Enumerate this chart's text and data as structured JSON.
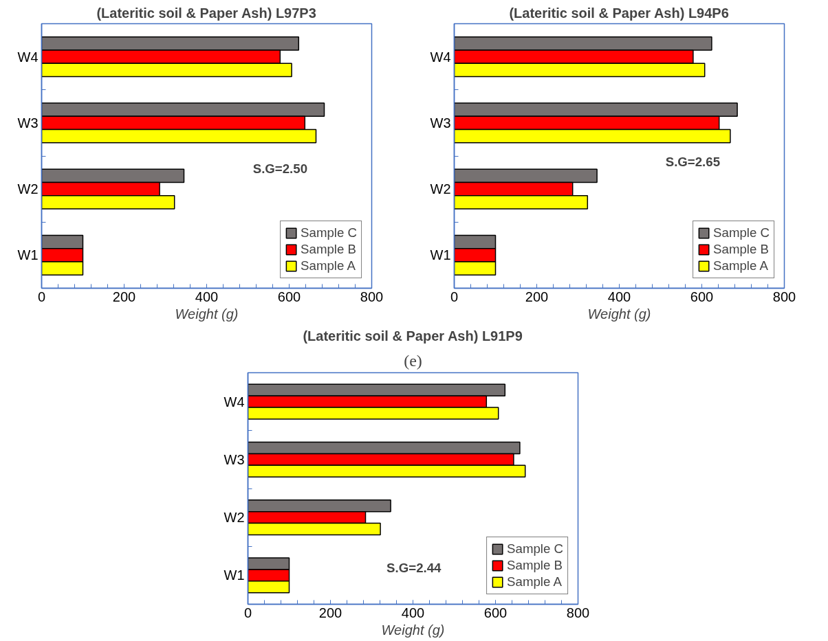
{
  "chart_data": [
    {
      "type": "bar",
      "orientation": "horizontal",
      "title": "(Lateritic soil & Paper Ash) L97P3",
      "xlabel": "Weight (g)",
      "categories": [
        "W4",
        "W3",
        "W2",
        "W1"
      ],
      "series": [
        {
          "name": "Sample C",
          "color": "#767171",
          "values": [
            623,
            685,
            345,
            100
          ]
        },
        {
          "name": "Sample B",
          "color": "#ff0000",
          "values": [
            578,
            638,
            286,
            100
          ]
        },
        {
          "name": "Sample A",
          "color": "#ffff00",
          "values": [
            606,
            665,
            322,
            100
          ]
        }
      ],
      "xlim": [
        0,
        800
      ],
      "xticks": [
        0,
        200,
        400,
        600,
        800
      ],
      "legend": "bottom right",
      "annotations": [
        "S.G=2.50"
      ]
    },
    {
      "type": "bar",
      "orientation": "horizontal",
      "title": "(Lateritic soil & Paper Ash) L94P6",
      "xlabel": "Weight (g)",
      "categories": [
        "W4",
        "W3",
        "W2",
        "W1"
      ],
      "series": [
        {
          "name": "Sample C",
          "color": "#767171",
          "values": [
            624,
            686,
            346,
            100
          ]
        },
        {
          "name": "Sample B",
          "color": "#ff0000",
          "values": [
            579,
            642,
            287,
            100
          ]
        },
        {
          "name": "Sample A",
          "color": "#ffff00",
          "values": [
            607,
            669,
            323,
            100
          ]
        }
      ],
      "xlim": [
        0,
        800
      ],
      "xticks": [
        0,
        200,
        400,
        600,
        800
      ],
      "legend": "bottom right",
      "annotations": [
        "S.G=2.65"
      ]
    },
    {
      "type": "bar",
      "orientation": "horizontal",
      "title": "(Lateritic soil & Paper Ash) L91P9",
      "xlabel": "Weight (g)",
      "categories": [
        "W4",
        "W3",
        "W2",
        "W1"
      ],
      "series": [
        {
          "name": "Sample C",
          "color": "#767171",
          "values": [
            623,
            659,
            346,
            100
          ]
        },
        {
          "name": "Sample B",
          "color": "#ff0000",
          "values": [
            578,
            644,
            285,
            100
          ]
        },
        {
          "name": "Sample A",
          "color": "#ffff00",
          "values": [
            607,
            672,
            321,
            100
          ]
        }
      ],
      "xlim": [
        0,
        800
      ],
      "xticks": [
        0,
        200,
        400,
        600,
        800
      ],
      "legend": "bottom right",
      "annotations": [
        "(e)",
        "S.G=2.44"
      ]
    }
  ]
}
